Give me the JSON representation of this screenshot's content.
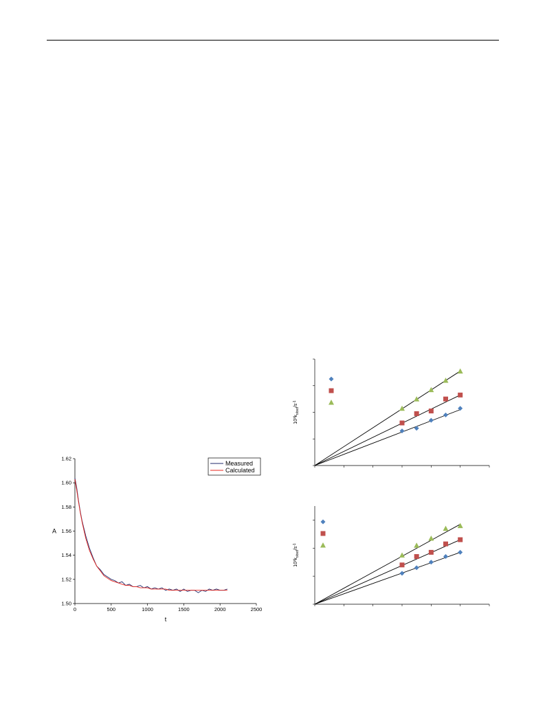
{
  "colors": {
    "measured": "#1f2a6b",
    "calculated": "#e8231b",
    "series_diamond": "#4f81bd",
    "series_square": "#c0504d",
    "series_triangle": "#9bbb59",
    "fit_line": "#000000"
  },
  "chart_data": [
    {
      "type": "line",
      "xlabel": "t",
      "ylabel": "A",
      "xlim": [
        0,
        2500
      ],
      "ylim": [
        1.5,
        1.62
      ],
      "x_ticks": [
        "0",
        "500",
        "1000",
        "1500",
        "2000",
        "2500"
      ],
      "y_ticks": [
        "1.50",
        "1.52",
        "1.54",
        "1.56",
        "1.58",
        "1.60",
        "1.62"
      ],
      "legend": [
        "Measured",
        "Calculated"
      ],
      "legend_position": "top-right",
      "series": [
        {
          "name": "Measured",
          "x": [
            0,
            25,
            50,
            75,
            100,
            150,
            200,
            250,
            300,
            350,
            400,
            450,
            500,
            550,
            600,
            650,
            700,
            750,
            800,
            850,
            900,
            950,
            1000,
            1050,
            1100,
            1150,
            1200,
            1250,
            1300,
            1350,
            1400,
            1450,
            1500,
            1550,
            1600,
            1650,
            1700,
            1750,
            1800,
            1850,
            1900,
            1950,
            2000,
            2050,
            2100
          ],
          "y": [
            1.604,
            1.596,
            1.585,
            1.576,
            1.568,
            1.556,
            1.546,
            1.538,
            1.531,
            1.528,
            1.524,
            1.522,
            1.52,
            1.519,
            1.517,
            1.518,
            1.515,
            1.516,
            1.514,
            1.514,
            1.515,
            1.513,
            1.514,
            1.512,
            1.513,
            1.512,
            1.513,
            1.511,
            1.512,
            1.511,
            1.512,
            1.51,
            1.512,
            1.51,
            1.511,
            1.511,
            1.509,
            1.511,
            1.51,
            1.512,
            1.511,
            1.512,
            1.511,
            1.511,
            1.512
          ]
        },
        {
          "name": "Calculated",
          "x": [
            0,
            25,
            50,
            75,
            100,
            150,
            200,
            250,
            300,
            350,
            400,
            450,
            500,
            550,
            600,
            650,
            700,
            750,
            800,
            850,
            900,
            950,
            1000,
            1050,
            1100,
            1150,
            1200,
            1250,
            1300,
            1350,
            1400,
            1450,
            1500,
            1550,
            1600,
            1650,
            1700,
            1750,
            1800,
            1850,
            1900,
            1950,
            2000,
            2050,
            2100
          ],
          "y": [
            1.603,
            1.594,
            1.584,
            1.575,
            1.567,
            1.554,
            1.544,
            1.537,
            1.531,
            1.527,
            1.523,
            1.521,
            1.519,
            1.518,
            1.517,
            1.516,
            1.515,
            1.515,
            1.514,
            1.514,
            1.513,
            1.513,
            1.513,
            1.512,
            1.512,
            1.512,
            1.512,
            1.512,
            1.511,
            1.511,
            1.511,
            1.511,
            1.511,
            1.511,
            1.511,
            1.511,
            1.511,
            1.511,
            1.511,
            1.511,
            1.511,
            1.511,
            1.511,
            1.511,
            1.511
          ]
        }
      ]
    },
    {
      "type": "scatter",
      "ylabel": "10³k",
      "ylabel_sub": "obsd",
      "ylabel_unit": "/s",
      "ylabel_unit_sup": "-1",
      "xlim": [
        0,
        12
      ],
      "ylim": [
        0,
        8
      ],
      "grid": false,
      "series": [
        {
          "marker": "diamond",
          "x": [
            6,
            7,
            8,
            9,
            10
          ],
          "y": [
            2.6,
            2.8,
            3.4,
            3.8,
            4.3
          ]
        },
        {
          "marker": "square",
          "x": [
            6,
            7,
            8,
            9,
            10
          ],
          "y": [
            3.2,
            3.9,
            4.1,
            5.0,
            5.3
          ]
        },
        {
          "marker": "triangle",
          "x": [
            6,
            7,
            8,
            9,
            10
          ],
          "y": [
            4.3,
            5.0,
            5.7,
            6.4,
            7.1
          ]
        }
      ],
      "fit_lines": [
        {
          "x": [
            0,
            10
          ],
          "y": [
            0,
            4.2
          ]
        },
        {
          "x": [
            0,
            10
          ],
          "y": [
            0,
            5.3
          ]
        },
        {
          "x": [
            0,
            10
          ],
          "y": [
            0,
            7.1
          ]
        }
      ]
    },
    {
      "type": "scatter",
      "ylabel": "10³k",
      "ylabel_sub": "obsd",
      "ylabel_unit": "/s",
      "ylabel_unit_sup": "-1",
      "xlim": [
        0,
        12
      ],
      "ylim": [
        0,
        7
      ],
      "grid": false,
      "series": [
        {
          "marker": "diamond",
          "x": [
            6,
            7,
            8,
            9,
            10
          ],
          "y": [
            2.2,
            2.6,
            3.0,
            3.4,
            3.7
          ]
        },
        {
          "marker": "square",
          "x": [
            6,
            7,
            8,
            9,
            10
          ],
          "y": [
            2.8,
            3.4,
            3.7,
            4.3,
            4.6
          ]
        },
        {
          "marker": "triangle",
          "x": [
            6,
            7,
            8,
            9,
            10
          ],
          "y": [
            3.5,
            4.2,
            4.7,
            5.4,
            5.6
          ]
        }
      ],
      "fit_lines": [
        {
          "x": [
            0,
            10
          ],
          "y": [
            0,
            3.7
          ]
        },
        {
          "x": [
            0,
            10
          ],
          "y": [
            0,
            4.6
          ]
        },
        {
          "x": [
            0,
            10
          ],
          "y": [
            0,
            5.7
          ]
        }
      ]
    }
  ]
}
